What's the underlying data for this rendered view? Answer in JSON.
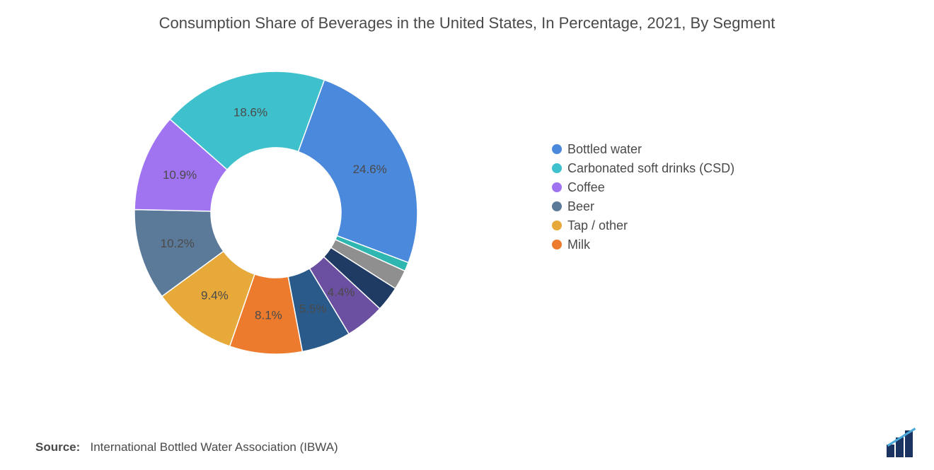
{
  "title": "Consumption Share of Beverages in the United States, In Percentage, 2021, By Segment",
  "chart": {
    "type": "donut",
    "inner_radius_ratio": 0.46,
    "background_color": "#ffffff",
    "start_angle_deg": 20,
    "label_fontsize": 17,
    "label_color": "#4a4a4a",
    "slices": [
      {
        "name": "Bottled water",
        "value": 24.6,
        "color": "#4a89dc",
        "label": "24.6%",
        "show_label": true,
        "show_in_legend": true
      },
      {
        "name": "(thin teal)",
        "value": 1.0,
        "color": "#2fb6b0",
        "label": "",
        "show_label": false,
        "show_in_legend": false
      },
      {
        "name": "(grey)",
        "value": 2.2,
        "color": "#8f8f8f",
        "label": "",
        "show_label": false,
        "show_in_legend": false
      },
      {
        "name": "(dark navy)",
        "value": 2.8,
        "color": "#1f3a63",
        "label": "",
        "show_label": false,
        "show_in_legend": false
      },
      {
        "name": "(purple small)",
        "value": 4.4,
        "color": "#6b4fa0",
        "label": "4.4%",
        "show_label": true,
        "show_in_legend": false
      },
      {
        "name": "(blue mid)",
        "value": 5.5,
        "color": "#2a5a8a",
        "label": "5.5%",
        "show_label": true,
        "show_in_legend": false
      },
      {
        "name": "Milk",
        "value": 8.1,
        "color": "#ec7b2d",
        "label": "8.1%",
        "show_label": true,
        "show_in_legend": true
      },
      {
        "name": "Tap / other",
        "value": 9.4,
        "color": "#e6a93a",
        "label": "9.4%",
        "show_label": true,
        "show_in_legend": true
      },
      {
        "name": "Beer",
        "value": 10.2,
        "color": "#5b7a99",
        "label": "10.2%",
        "show_label": true,
        "show_in_legend": true
      },
      {
        "name": "Coffee",
        "value": 10.9,
        "color": "#a074f0",
        "label": "10.9%",
        "show_label": true,
        "show_in_legend": true
      },
      {
        "name": "Carbonated soft drinks (CSD)",
        "value": 18.6,
        "color": "#3ec1cc",
        "label": "18.6%",
        "show_label": true,
        "show_in_legend": true
      }
    ],
    "legend_order": [
      "Bottled water",
      "Carbonated soft drinks (CSD)",
      "Coffee",
      "Beer",
      "Tap / other",
      "Milk"
    ],
    "legend_fontsize": 18
  },
  "source_prefix": "Source:",
  "source_text": "International Bottled Water Association (IBWA)",
  "logo_colors": {
    "bars": "#1a3360",
    "line": "#4aa8d8"
  }
}
